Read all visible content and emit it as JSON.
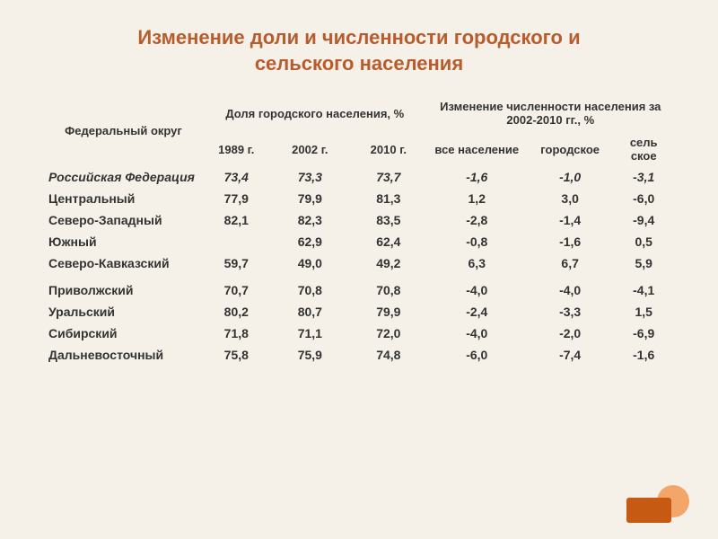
{
  "title_line1": "Изменение доли и численности городского и",
  "title_line2": "сельского населения",
  "headers": {
    "col1": "Федеральный округ",
    "group1": "Доля городского населения, %",
    "group2": "Изменение численности населения за 2002-2010 гг., %",
    "y1989": "1989 г.",
    "y2002": "2002 г.",
    "y2010": "2010 г.",
    "all": "все население",
    "urban": "городское",
    "rural": "сель ское"
  },
  "rows": [
    {
      "name": "Российская Федерация",
      "v": [
        "73,4",
        "73,3",
        "73,7",
        "-1,6",
        "-1,0",
        "-3,1"
      ],
      "italic": true
    },
    {
      "name": "Центральный",
      "v": [
        "77,9",
        "79,9",
        "81,3",
        "1,2",
        "3,0",
        "-6,0"
      ]
    },
    {
      "name": "Северо-Западный",
      "v": [
        "82,1",
        "82,3",
        "83,5",
        "-2,8",
        "-1,4",
        "-9,4"
      ]
    },
    {
      "name": "Южный",
      "v": [
        "",
        "62,9",
        "62,4",
        "-0,8",
        "-1,6",
        "0,5"
      ]
    },
    {
      "name": "Северо-Кавказский",
      "v": [
        "59,7",
        "49,0",
        "49,2",
        "6,3",
        "6,7",
        "5,9"
      ]
    },
    {
      "name": "Приволжский",
      "v": [
        "70,7",
        "70,8",
        "70,8",
        "-4,0",
        "-4,0",
        "-4,1"
      ],
      "spacer": true
    },
    {
      "name": "Уральский",
      "v": [
        "80,2",
        "80,7",
        "79,9",
        "-2,4",
        "-3,3",
        "1,5"
      ]
    },
    {
      "name": "Сибирский",
      "v": [
        "71,8",
        "71,1",
        "72,0",
        "-4,0",
        "-2,0",
        "-6,9"
      ]
    },
    {
      "name": "Дальневосточный",
      "v": [
        "75,8",
        "75,9",
        "74,8",
        "-6,0",
        "-7,4",
        "-1,6"
      ]
    }
  ],
  "colors": {
    "background": "#f5f1e8",
    "title": "#b85c2e",
    "text": "#333333",
    "deco_dark": "#c75a12",
    "deco_light": "#f4a56a"
  }
}
